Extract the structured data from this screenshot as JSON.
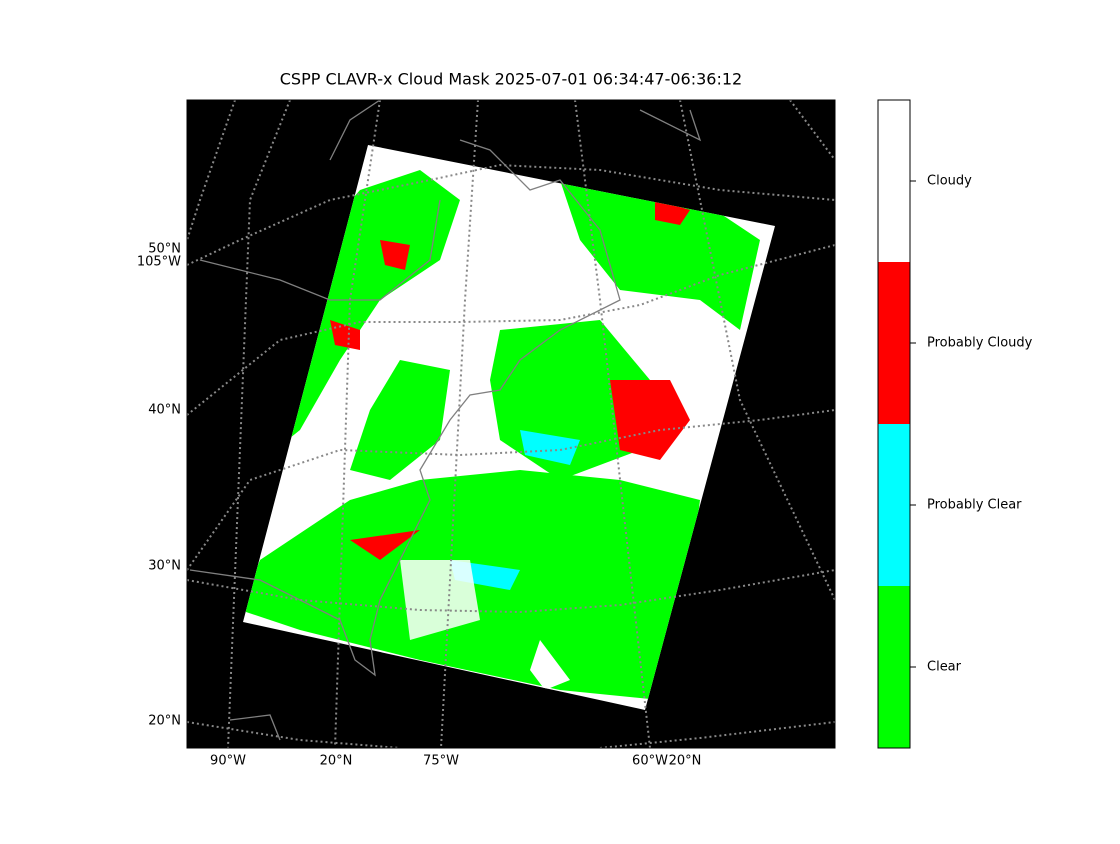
{
  "title": "CSPP CLAVR-x Cloud Mask 2025-07-01 06:34:47-06:36:12",
  "left_labels": [
    "50°N",
    "105°W",
    "40°N",
    "30°N",
    "20°N"
  ],
  "bottom_labels": [
    "90°W",
    "20°N",
    "75°W",
    "60°W",
    "20°N"
  ],
  "colorbar": {
    "classes": [
      {
        "label": "Cloudy",
        "color": "#ffffff"
      },
      {
        "label": "Probably Cloudy",
        "color": "#ff0000"
      },
      {
        "label": "Probably Clear",
        "color": "#00ffff"
      },
      {
        "label": "Clear",
        "color": "#00ff00"
      }
    ]
  }
}
